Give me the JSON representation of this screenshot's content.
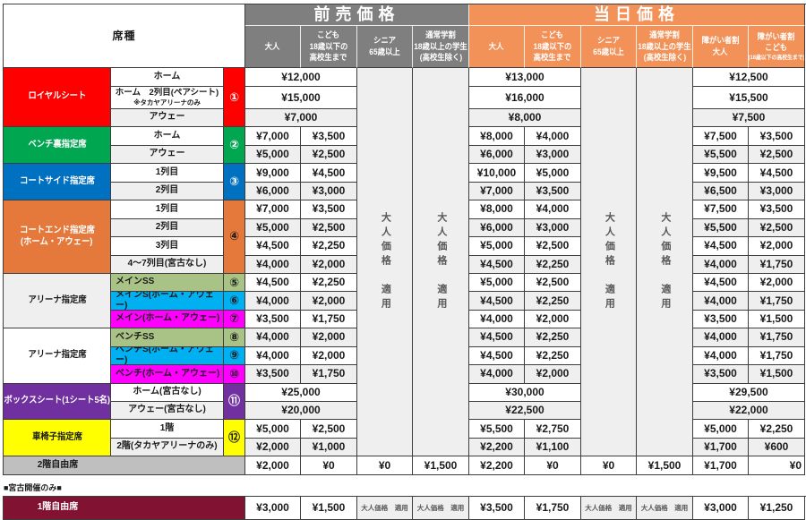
{
  "header": {
    "seat_type": "席種",
    "presale_title": "前売価格",
    "sameday_title": "当日価格",
    "presale_columns": [
      {
        "lines": [
          "大人"
        ]
      },
      {
        "lines": [
          "こども",
          "18歳以下の",
          "高校生まで"
        ]
      },
      {
        "lines": [
          "シニア",
          "65歳以上"
        ]
      },
      {
        "lines": [
          "通常学割",
          "18歳以上の学生",
          "(高校生除く)"
        ]
      }
    ],
    "sameday_columns": [
      {
        "lines": [
          "大人"
        ]
      },
      {
        "lines": [
          "こども",
          "18歳以下の",
          "高校生まで"
        ]
      },
      {
        "lines": [
          "シニア",
          "65歳以上"
        ]
      },
      {
        "lines": [
          "通常学割",
          "18歳以上の学生",
          "(高校生除く)"
        ]
      },
      {
        "lines": [
          "障がい者割",
          "大人"
        ]
      },
      {
        "lines": [
          "障がい者割",
          "こども"
        ],
        "small": "(18歳以下の高校生まで)"
      }
    ]
  },
  "adult_price_note": "大人価格　適用",
  "groups": [
    {
      "name_lines": [
        "ロイヤルシート"
      ],
      "color": "#FE0000",
      "text_color": "#FFFFFF",
      "num": "①",
      "num_color": "#FFFFFF",
      "rows": [
        {
          "label": "ホーム",
          "shade": false,
          "pre_merged": "¥12,000",
          "day_merged": "¥13,000",
          "dis_merged": "¥12,500"
        },
        {
          "label": "ホーム　2列目(ペアシート)",
          "sublabel": "※タカヤアリーナのみ",
          "shade": false,
          "pre_merged": "¥15,000",
          "day_merged": "¥16,000",
          "dis_merged": "¥15,500"
        },
        {
          "label": "アウェー",
          "shade": true,
          "pre_merged": "¥7,000",
          "day_merged": "¥8,000",
          "dis_merged": "¥7,500"
        }
      ]
    },
    {
      "name_lines": [
        "ベンチ裏指定席"
      ],
      "color": "#00A650",
      "text_color": "#FFFFFF",
      "num": "②",
      "num_color": "#FFFFFF",
      "rows": [
        {
          "label": "ホーム",
          "shade": false,
          "pre": [
            "¥7,000",
            "¥3,500"
          ],
          "day": [
            "¥8,000",
            "¥4,000"
          ],
          "dis": [
            "¥7,500",
            "¥3,500"
          ]
        },
        {
          "label": "アウェー",
          "shade": true,
          "pre": [
            "¥5,000",
            "¥2,500"
          ],
          "day": [
            "¥6,000",
            "¥3,000"
          ],
          "dis": [
            "¥5,500",
            "¥2,500"
          ]
        }
      ]
    },
    {
      "name_lines": [
        "コートサイド指定席"
      ],
      "color": "#0070C0",
      "text_color": "#FFFFFF",
      "num": "③",
      "num_color": "#FFFFFF",
      "rows": [
        {
          "label": "1列目",
          "shade": false,
          "pre": [
            "¥9,000",
            "¥4,500"
          ],
          "day": [
            "¥10,000",
            "¥5,000"
          ],
          "dis": [
            "¥9,500",
            "¥4,500"
          ]
        },
        {
          "label": "2列目",
          "shade": true,
          "pre": [
            "¥6,000",
            "¥3,000"
          ],
          "day": [
            "¥7,000",
            "¥3,500"
          ],
          "dis": [
            "¥6,500",
            "¥3,000"
          ]
        }
      ]
    },
    {
      "name_lines": [
        "コートエンド指定席",
        "(ホーム・アウェー)"
      ],
      "color": "#E5793B",
      "text_color": "#FFFFFF",
      "num": "④",
      "num_color": "#1A1A1A",
      "rows": [
        {
          "label": "1列目",
          "shade": false,
          "pre": [
            "¥7,000",
            "¥3,500"
          ],
          "day": [
            "¥8,000",
            "¥4,000"
          ],
          "dis": [
            "¥7,500",
            "¥3,500"
          ]
        },
        {
          "label": "2列目",
          "shade": true,
          "pre": [
            "¥5,000",
            "¥2,500"
          ],
          "day": [
            "¥6,000",
            "¥3,000"
          ],
          "dis": [
            "¥5,500",
            "¥2,500"
          ]
        },
        {
          "label": "3列目",
          "shade": false,
          "pre": [
            "¥4,500",
            "¥2,250"
          ],
          "day": [
            "¥5,000",
            "¥2,500"
          ],
          "dis": [
            "¥4,500",
            "¥2,000"
          ]
        },
        {
          "label": "4～7列目(宮古なし)",
          "shade": true,
          "pre": [
            "¥4,000",
            "¥2,000"
          ],
          "day": [
            "¥4,500",
            "¥2,250"
          ],
          "dis": [
            "¥4,000",
            "¥1,750"
          ]
        }
      ]
    },
    {
      "name_lines": [
        "アリーナ指定席"
      ],
      "color": "#EFEFEF",
      "text_color": "#1A1A1A",
      "rows": [
        {
          "label": "メインSS",
          "cell_color": "#A9C386",
          "num": "⑤",
          "num_color": "#1A1A1A",
          "shade": false,
          "pre": [
            "¥4,500",
            "¥2,250"
          ],
          "day": [
            "¥5,000",
            "¥2,500"
          ],
          "dis": [
            "¥4,500",
            "¥2,000"
          ]
        },
        {
          "label": "メインS(ホーム・アウェー)",
          "cell_color": "#00B0F0",
          "num": "⑥",
          "num_color": "#1A1A1A",
          "shade": true,
          "pre": [
            "¥4,000",
            "¥2,000"
          ],
          "day": [
            "¥4,500",
            "¥2,250"
          ],
          "dis": [
            "¥4,000",
            "¥1,750"
          ]
        },
        {
          "label": "メイン(ホーム・アウェー)",
          "cell_color": "#FF00FF",
          "num": "⑦",
          "num_color": "#1A1A1A",
          "shade": false,
          "pre": [
            "¥3,500",
            "¥1,750"
          ],
          "day": [
            "¥4,000",
            "¥2,000"
          ],
          "dis": [
            "¥3,500",
            "¥1,500"
          ]
        }
      ]
    },
    {
      "name_lines": [
        "アリーナ指定席"
      ],
      "color": "#FFFFFF",
      "text_color": "#1A1A1A",
      "rows": [
        {
          "label": "ベンチSS",
          "cell_color": "#A9C386",
          "num": "⑧",
          "num_color": "#1A1A1A",
          "shade": true,
          "pre": [
            "¥4,000",
            "¥2,000"
          ],
          "day": [
            "¥4,500",
            "¥2,250"
          ],
          "dis": [
            "¥4,000",
            "¥1,750"
          ]
        },
        {
          "label": "ベンチS(ホーム・アウェー)",
          "cell_color": "#00B0F0",
          "num": "⑨",
          "num_color": "#1A1A1A",
          "shade": false,
          "pre": [
            "¥4,000",
            "¥2,000"
          ],
          "day": [
            "¥4,500",
            "¥2,250"
          ],
          "dis": [
            "¥4,000",
            "¥1,750"
          ]
        },
        {
          "label": "ベンチ(ホーム・アウェー)",
          "cell_color": "#FF00FF",
          "num": "⑩",
          "num_color": "#1A1A1A",
          "shade": true,
          "pre": [
            "¥3,500",
            "¥1,750"
          ],
          "day": [
            "¥4,000",
            "¥2,000"
          ],
          "dis": [
            "¥3,500",
            "¥1,500"
          ]
        }
      ]
    },
    {
      "name_lines": [
        "ボックスシート(1シート5名)"
      ],
      "color": "#7030A0",
      "text_color": "#FFFFFF",
      "num": "⑪",
      "num_color": "#FFFFFF",
      "rows": [
        {
          "label": "ホーム(宮古なし)",
          "shade": false,
          "pre_merged": "¥25,000",
          "day_merged": "¥30,000",
          "dis_merged": "¥29,500"
        },
        {
          "label": "アウェー(宮古なし)",
          "shade": true,
          "pre_merged": "¥20,000",
          "day_merged": "¥22,500",
          "dis_merged": "¥22,000"
        }
      ]
    },
    {
      "name_lines": [
        "車椅子指定席"
      ],
      "color": "#FFFF00",
      "text_color": "#1A1A1A",
      "num": "⑫",
      "num_color": "#1A1A1A",
      "rows": [
        {
          "label": "1階",
          "shade": false,
          "pre": [
            "¥5,000",
            "¥2,500"
          ],
          "day": [
            "¥5,500",
            "¥2,750"
          ],
          "dis": [
            "¥5,000",
            "¥2,250"
          ]
        },
        {
          "label": "2階(タカヤアリーナのみ)",
          "shade": true,
          "pre": [
            "¥2,000",
            "¥1,000"
          ],
          "day": [
            "¥2,200",
            "¥1,100"
          ],
          "dis": [
            "¥1,700",
            "¥600"
          ]
        }
      ]
    }
  ],
  "free_seat_2f": {
    "label": "2階自由席",
    "pre": [
      "¥2,000",
      "¥0",
      "¥0",
      "¥1,500"
    ],
    "day": [
      "¥2,200",
      "¥0",
      "¥0",
      "¥1,500",
      "¥1,700",
      "¥0"
    ]
  },
  "miyako_note": "■宮古開催のみ■",
  "free_seat_1f": {
    "label": "1階自由席",
    "pre": [
      "¥3,000",
      "¥1,500"
    ],
    "day": [
      "¥3,500",
      "¥1,750"
    ],
    "dis": [
      "¥3,000",
      "¥1,250"
    ]
  },
  "colors": {
    "banner_gray": "#7F7F7F",
    "banner_orange": "#F29158",
    "shade": "#EFEFEF",
    "gray_2f": "#BFBFBF",
    "maroon_1f": "#811231",
    "border": "#3D3D3D"
  }
}
